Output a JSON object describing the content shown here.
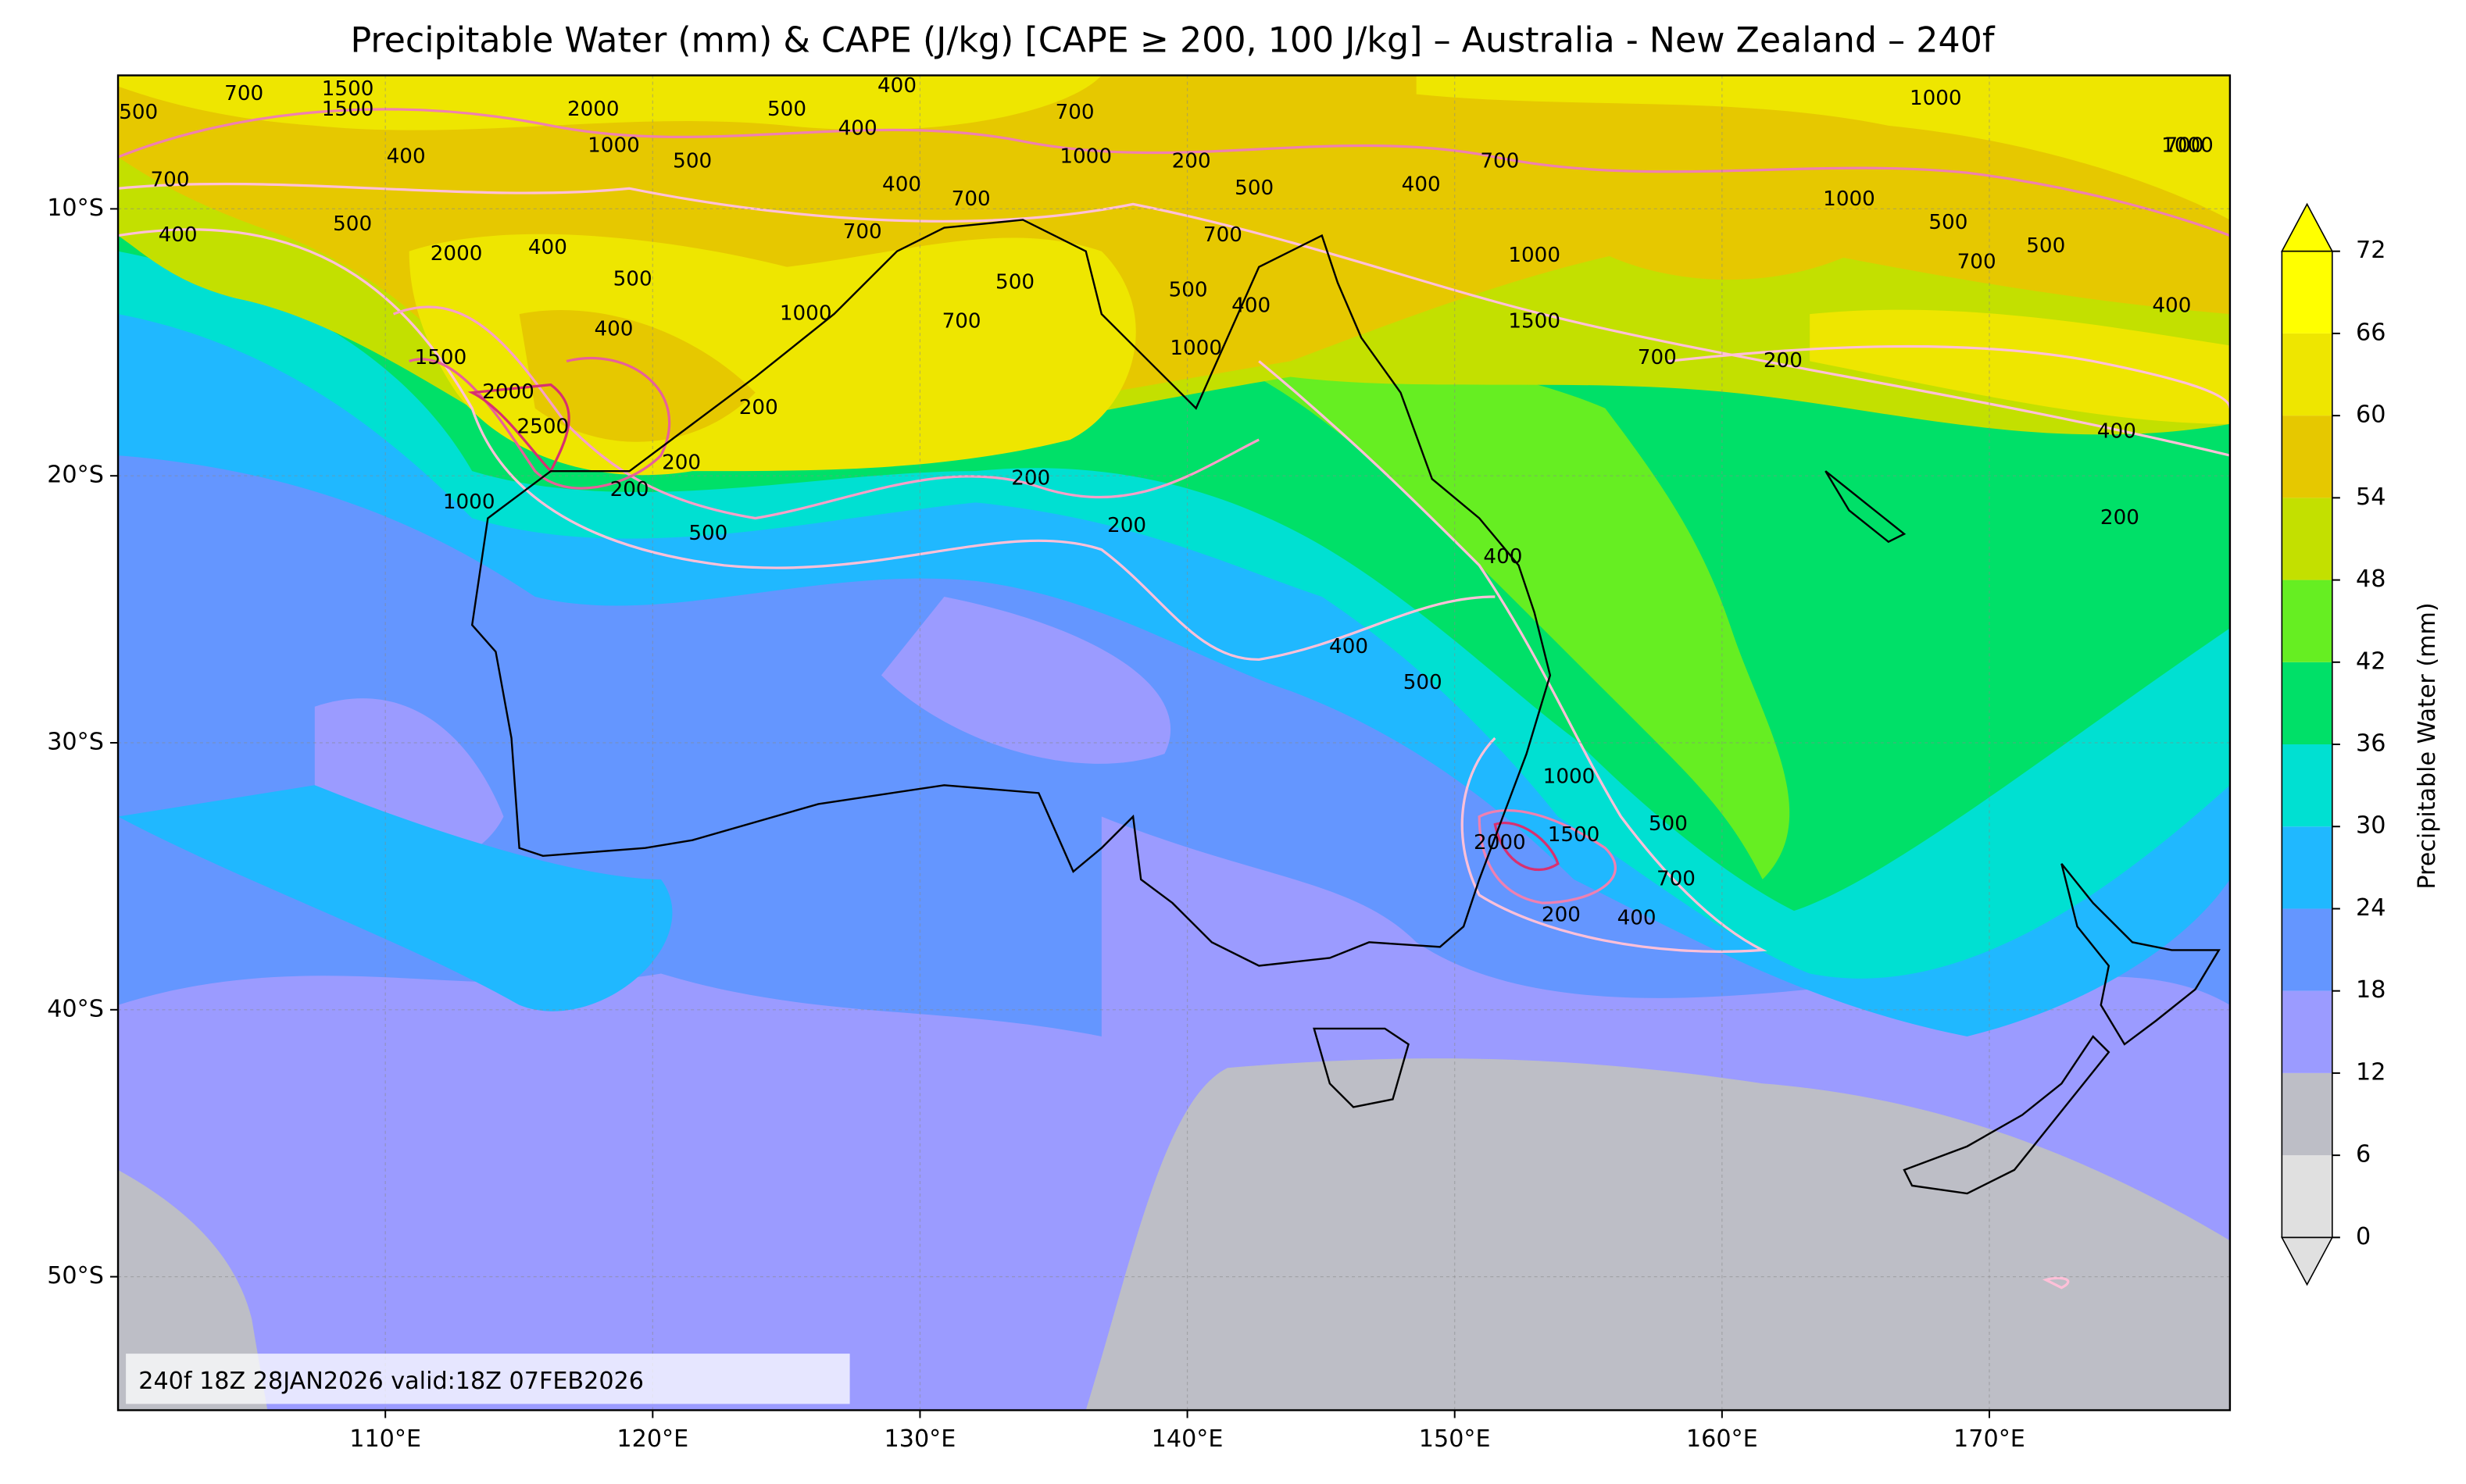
{
  "title": "Precipitable Water (mm) & CAPE (J/kg) [CAPE ≥ 200, 100 J/kg] – Australia - New Zealand – 240f",
  "map": {
    "xlim": [
      100,
      179
    ],
    "ylim": [
      -55,
      -5
    ],
    "grid": true,
    "xticks": [
      {
        "value": 110,
        "label": "110°E"
      },
      {
        "value": 120,
        "label": "120°E"
      },
      {
        "value": 130,
        "label": "130°E"
      },
      {
        "value": 140,
        "label": "140°E"
      },
      {
        "value": 150,
        "label": "150°E"
      },
      {
        "value": 160,
        "label": "160°E"
      },
      {
        "value": 170,
        "label": "170°E"
      }
    ],
    "yticks": [
      {
        "value": -10,
        "label": "10°S"
      },
      {
        "value": -20,
        "label": "20°S"
      },
      {
        "value": -30,
        "label": "30°S"
      },
      {
        "value": -40,
        "label": "40°S"
      },
      {
        "value": -50,
        "label": "50°S"
      }
    ],
    "cape_contour_labels": [
      500,
      700,
      1500,
      2000,
      1500,
      400,
      1000,
      500,
      400,
      500,
      700,
      400,
      700,
      400,
      500,
      2000,
      400,
      500,
      400,
      1500,
      2000,
      2500,
      200,
      1000,
      200,
      500,
      200,
      200,
      200,
      1000,
      700,
      400,
      700,
      500,
      1000,
      200,
      700,
      500,
      700,
      1000,
      500,
      400,
      400,
      700,
      1000,
      1500,
      700,
      200,
      1000,
      1000,
      500,
      700,
      500,
      400,
      1000,
      700,
      400,
      200,
      400,
      500,
      400,
      1000,
      1500,
      2000,
      200,
      400,
      500,
      700
    ],
    "footer": "240f 18Z 28JAN2026 valid:18Z 07FEB2026"
  },
  "colorbar": {
    "label": "Precipitable Water (mm)",
    "levels": [
      0,
      6,
      12,
      18,
      24,
      30,
      36,
      42,
      48,
      54,
      60,
      66,
      72
    ],
    "colors": [
      "#e0e0e0",
      "#bdbec6",
      "#9b9bff",
      "#6496ff",
      "#20b8ff",
      "#00e0d2",
      "#00e068",
      "#66ee22",
      "#c3e000",
      "#e6c800",
      "#eee600",
      "#ffff00"
    ]
  }
}
